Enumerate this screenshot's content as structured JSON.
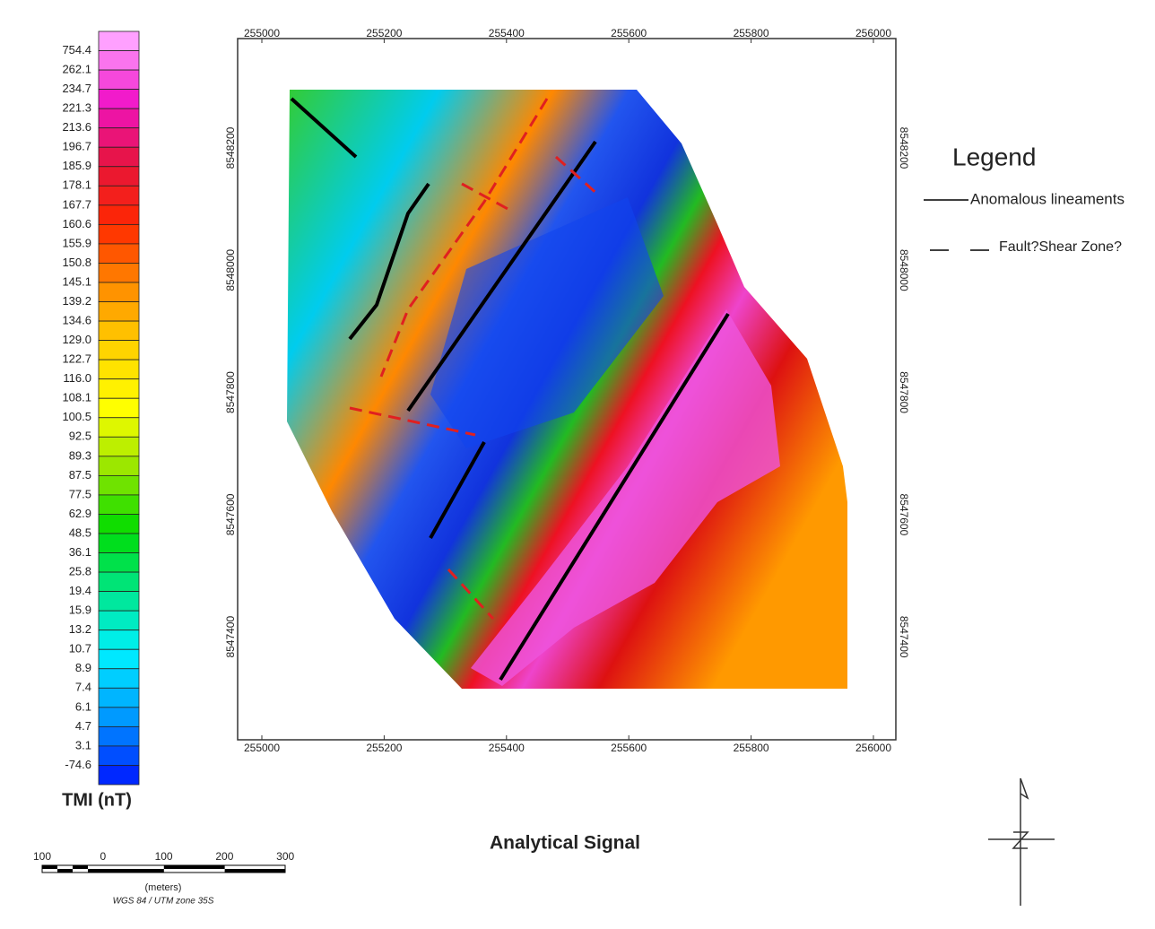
{
  "colorbar": {
    "title": "TMI (nT)",
    "labels": [
      "754.4",
      "262.1",
      "234.7",
      "221.3",
      "213.6",
      "196.7",
      "185.9",
      "178.1",
      "167.7",
      "160.6",
      "155.9",
      "150.8",
      "145.1",
      "139.2",
      "134.6",
      "129.0",
      "122.7",
      "116.0",
      "108.1",
      "100.5",
      "92.5",
      "89.3",
      "87.5",
      "77.5",
      "62.9",
      "48.5",
      "36.1",
      "25.8",
      "19.4",
      "15.9",
      "13.2",
      "10.7",
      "8.9",
      "7.4",
      "6.1",
      "4.7",
      "3.1",
      "-74.6"
    ]
  },
  "map": {
    "title": "Analytical Signal",
    "x_labels": [
      "255000",
      "255200",
      "255400",
      "255600",
      "255800",
      "256000"
    ],
    "y_labels": [
      "8548200",
      "8548000",
      "8547800",
      "8547600",
      "8547400"
    ]
  },
  "legend": {
    "title": "Legend",
    "items": [
      "Anomalous lineaments",
      "Fault?Shear Zone?"
    ]
  },
  "scale_bar": {
    "labels": [
      "100",
      "0",
      "100",
      "200",
      "300"
    ],
    "unit": "(meters)",
    "projection": "WGS 84 / UTM zone 35S"
  }
}
